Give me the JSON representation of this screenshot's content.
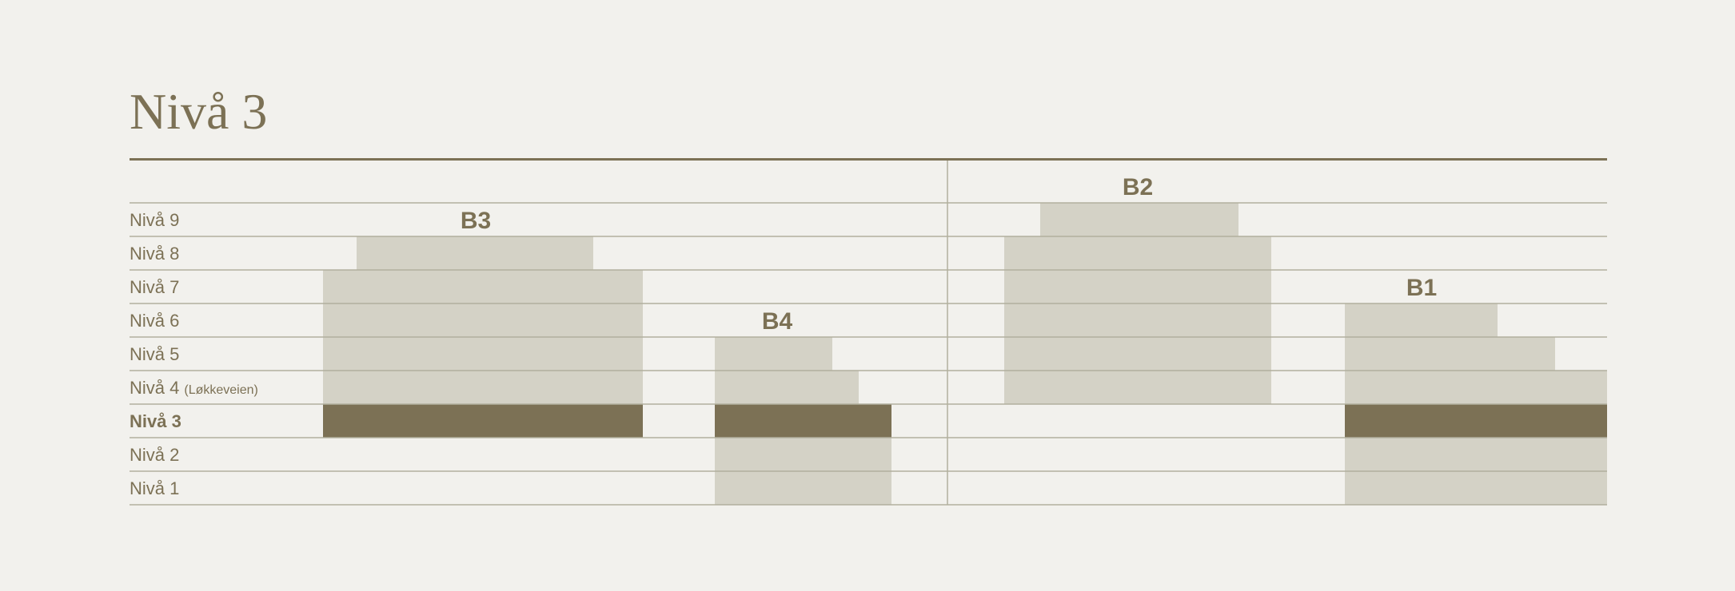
{
  "title": "Nivå 3",
  "current_level": 3,
  "levels": [
    {
      "level": 9,
      "label": "Nivå 9",
      "note": ""
    },
    {
      "level": 8,
      "label": "Nivå 8",
      "note": ""
    },
    {
      "level": 7,
      "label": "Nivå 7",
      "note": ""
    },
    {
      "level": 6,
      "label": "Nivå 6",
      "note": ""
    },
    {
      "level": 5,
      "label": "Nivå 5",
      "note": ""
    },
    {
      "level": 4,
      "label": "Nivå 4",
      "note": "(Løkkeveien)"
    },
    {
      "level": 3,
      "label": "Nivå 3",
      "note": ""
    },
    {
      "level": 2,
      "label": "Nivå 2",
      "note": ""
    },
    {
      "level": 1,
      "label": "Nivå 1",
      "note": ""
    }
  ],
  "buildings": [
    {
      "name": "B3",
      "label_level": 9
    },
    {
      "name": "B4",
      "label_level": 6
    },
    {
      "name": "B2",
      "label_level": 10
    },
    {
      "name": "B1",
      "label_level": 7
    }
  ],
  "colors": {
    "background": "#f2f1ed",
    "accent": "#7c7155",
    "block": "#d4d2c6",
    "rule": "#b2b09e"
  }
}
